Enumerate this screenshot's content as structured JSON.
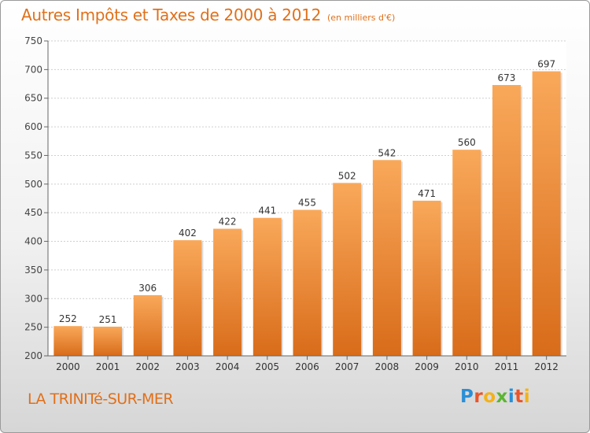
{
  "title": "Autres Impôts et Taxes de 2000 à 2012",
  "subtitle": "(en milliers d'€)",
  "city": "LA TRINITé-SUR-MER",
  "brand": {
    "letters": [
      "P",
      "r",
      "o",
      "x",
      "i",
      "t",
      "i"
    ],
    "colors": [
      "#2a8fd6",
      "#e8562a",
      "#f2b21b",
      "#5bb531",
      "#2a8fd6",
      "#e8562a",
      "#f2b21b"
    ]
  },
  "colors": {
    "accent": "#e0701a",
    "bar_top": "#f9a85a",
    "bar_bottom": "#d86c1a"
  },
  "chart_data": {
    "type": "bar",
    "categories": [
      "2000",
      "2001",
      "2002",
      "2003",
      "2004",
      "2005",
      "2006",
      "2007",
      "2008",
      "2009",
      "2010",
      "2011",
      "2012"
    ],
    "values": [
      252,
      251,
      306,
      402,
      422,
      441,
      455,
      502,
      542,
      471,
      560,
      673,
      697
    ],
    "ylim": [
      200,
      750
    ],
    "yticks": [
      200,
      250,
      300,
      350,
      400,
      450,
      500,
      550,
      600,
      650,
      700,
      750
    ],
    "grid": true
  }
}
